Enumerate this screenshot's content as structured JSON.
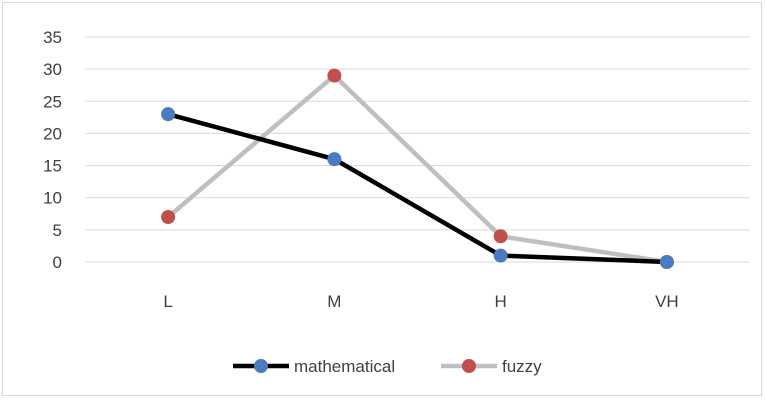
{
  "chart_data": {
    "type": "line",
    "categories": [
      "L",
      "M",
      "H",
      "VH"
    ],
    "series": [
      {
        "name": "mathematical",
        "values": [
          23,
          16,
          1,
          0
        ],
        "line_color": "#000000",
        "marker_color": "#4a7bc0"
      },
      {
        "name": "fuzzy",
        "values": [
          7,
          29,
          4,
          0
        ],
        "line_color": "#bfbfbf",
        "marker_color": "#c0504d"
      }
    ],
    "ylim": [
      0,
      35
    ],
    "yticks": [
      0,
      5,
      10,
      15,
      20,
      25,
      30,
      35
    ],
    "grid": true,
    "legend_position": "bottom",
    "title": "",
    "xlabel": "",
    "ylabel": ""
  }
}
